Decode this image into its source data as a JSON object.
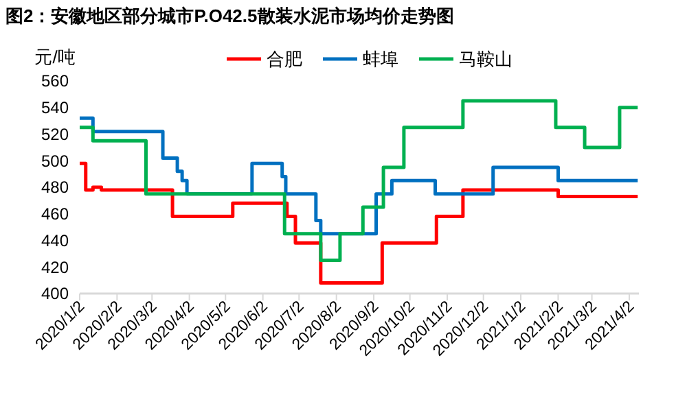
{
  "chart_data": {
    "type": "step",
    "title": "图2：安徽地区部分城市P.O42.5散装水泥市场均价走势图",
    "ylabel": "元/吨",
    "legend": "top",
    "ylim": [
      400,
      560
    ],
    "yticks": [
      400,
      420,
      440,
      460,
      480,
      500,
      520,
      540,
      560
    ],
    "xlim": [
      "2020-01-02",
      "2021-04-10"
    ],
    "xticks": [
      {
        "value": "2020-01-02",
        "label": "2020/1/2"
      },
      {
        "value": "2020-02-02",
        "label": "2020/2/2"
      },
      {
        "value": "2020-03-02",
        "label": "2020/3/2"
      },
      {
        "value": "2020-04-02",
        "label": "2020/4/2"
      },
      {
        "value": "2020-05-02",
        "label": "2020/5/2"
      },
      {
        "value": "2020-06-02",
        "label": "2020/6/2"
      },
      {
        "value": "2020-07-02",
        "label": "2020/7/2"
      },
      {
        "value": "2020-08-02",
        "label": "2020/8/2"
      },
      {
        "value": "2020-09-02",
        "label": "2020/9/2"
      },
      {
        "value": "2020-10-02",
        "label": "2020/10/2"
      },
      {
        "value": "2020-11-02",
        "label": "2020/11/2"
      },
      {
        "value": "2020-12-02",
        "label": "2020/12/2"
      },
      {
        "value": "2021-01-02",
        "label": "2021/1/2"
      },
      {
        "value": "2021-02-02",
        "label": "2021/2/2"
      },
      {
        "value": "2021-03-02",
        "label": "2021/3/2"
      },
      {
        "value": "2021-04-02",
        "label": "2021/4/2"
      }
    ],
    "series": [
      {
        "name": "合肥",
        "color": "#ff0000",
        "x": [
          "2020-01-02",
          "2020-01-07",
          "2020-01-13",
          "2020-01-20",
          "2020-03-19",
          "2020-05-08",
          "2020-06-22",
          "2020-06-29",
          "2020-07-20",
          "2020-09-09",
          "2020-10-24",
          "2020-11-15",
          "2021-02-02",
          "2021-04-09"
        ],
        "values": [
          498,
          478,
          480,
          478,
          458,
          468,
          458,
          438,
          408,
          438,
          458,
          478,
          473,
          473
        ]
      },
      {
        "name": "蚌埠",
        "color": "#0070c0",
        "x": [
          "2020-01-02",
          "2020-01-13",
          "2020-03-11",
          "2020-03-23",
          "2020-03-27",
          "2020-03-31",
          "2020-05-24",
          "2020-06-18",
          "2020-06-21",
          "2020-07-16",
          "2020-07-20",
          "2020-09-04",
          "2020-09-17",
          "2020-10-23",
          "2020-12-10",
          "2021-02-02",
          "2021-04-09"
        ],
        "values": [
          532,
          522,
          502,
          492,
          485,
          475,
          498,
          488,
          475,
          455,
          445,
          475,
          485,
          475,
          495,
          485,
          485
        ]
      },
      {
        "name": "马鞍山",
        "color": "#00b050",
        "x": [
          "2020-01-02",
          "2020-01-13",
          "2020-02-26",
          "2020-06-20",
          "2020-07-20",
          "2020-08-05",
          "2020-08-24",
          "2020-09-10",
          "2020-09-27",
          "2020-11-15",
          "2021-01-31",
          "2021-02-24",
          "2021-03-25",
          "2021-04-09"
        ],
        "values": [
          525,
          515,
          475,
          445,
          425,
          445,
          465,
          495,
          525,
          545,
          525,
          510,
          540,
          540
        ]
      }
    ]
  }
}
